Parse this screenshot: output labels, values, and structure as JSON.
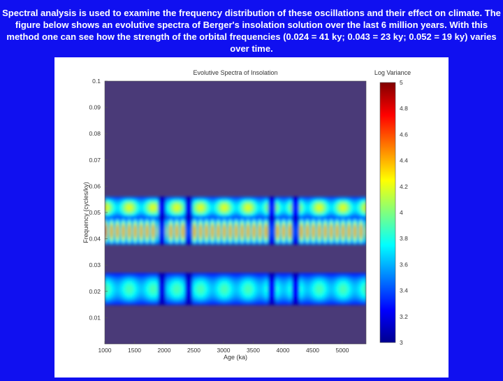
{
  "caption": "Spectral analysis is used to examine the frequency distribution of these oscillations and their effect on climate. The figure below shows an evolutive spectra of Berger's insolation solution over the last 6 million years. With this method one can see how the strength of the orbital frequencies (0.024 = 41 ky; 0.043 = 23 ky; 0.052 = 19 ky) varies over time.",
  "colors": {
    "background": "#1010f0",
    "plot_bg": "#4a3a78",
    "panel": "#ffffff"
  },
  "chart_data": {
    "type": "heatmap",
    "title": "Evolutive Spectra of Insolation",
    "xlabel": "Age (ka)",
    "ylabel": "Frequency (cycles/ky)",
    "xlim": [
      1000,
      5400
    ],
    "ylim": [
      0,
      0.1
    ],
    "x_ticks": [
      "1000",
      "1500",
      "2000",
      "2500",
      "3000",
      "3500",
      "4000",
      "4500",
      "5000"
    ],
    "y_ticks": [
      "0.1",
      "0.09",
      "0.08",
      "0.07",
      "0.06",
      "0.05",
      "0.04",
      "0.03",
      "0.02",
      "0.01"
    ],
    "colorbar": {
      "title": "Log Variance",
      "ticks": [
        "5",
        "4.8",
        "4.6",
        "4.4",
        "4.2",
        "4",
        "3.8",
        "3.6",
        "3.4",
        "3.2",
        "3"
      ],
      "range": [
        3,
        5
      ]
    },
    "bands": [
      {
        "frequency_low": 0.015,
        "frequency_high": 0.027,
        "peak_log_variance": 3.9,
        "label": "41 ky"
      },
      {
        "frequency_low": 0.038,
        "frequency_high": 0.048,
        "peak_log_variance": 4.7,
        "label": "23 ky"
      },
      {
        "frequency_low": 0.048,
        "frequency_high": 0.056,
        "peak_log_variance": 4.2,
        "label": "19 ky"
      }
    ],
    "gaps_ka": [
      1950,
      2400,
      3800,
      4200
    ]
  }
}
